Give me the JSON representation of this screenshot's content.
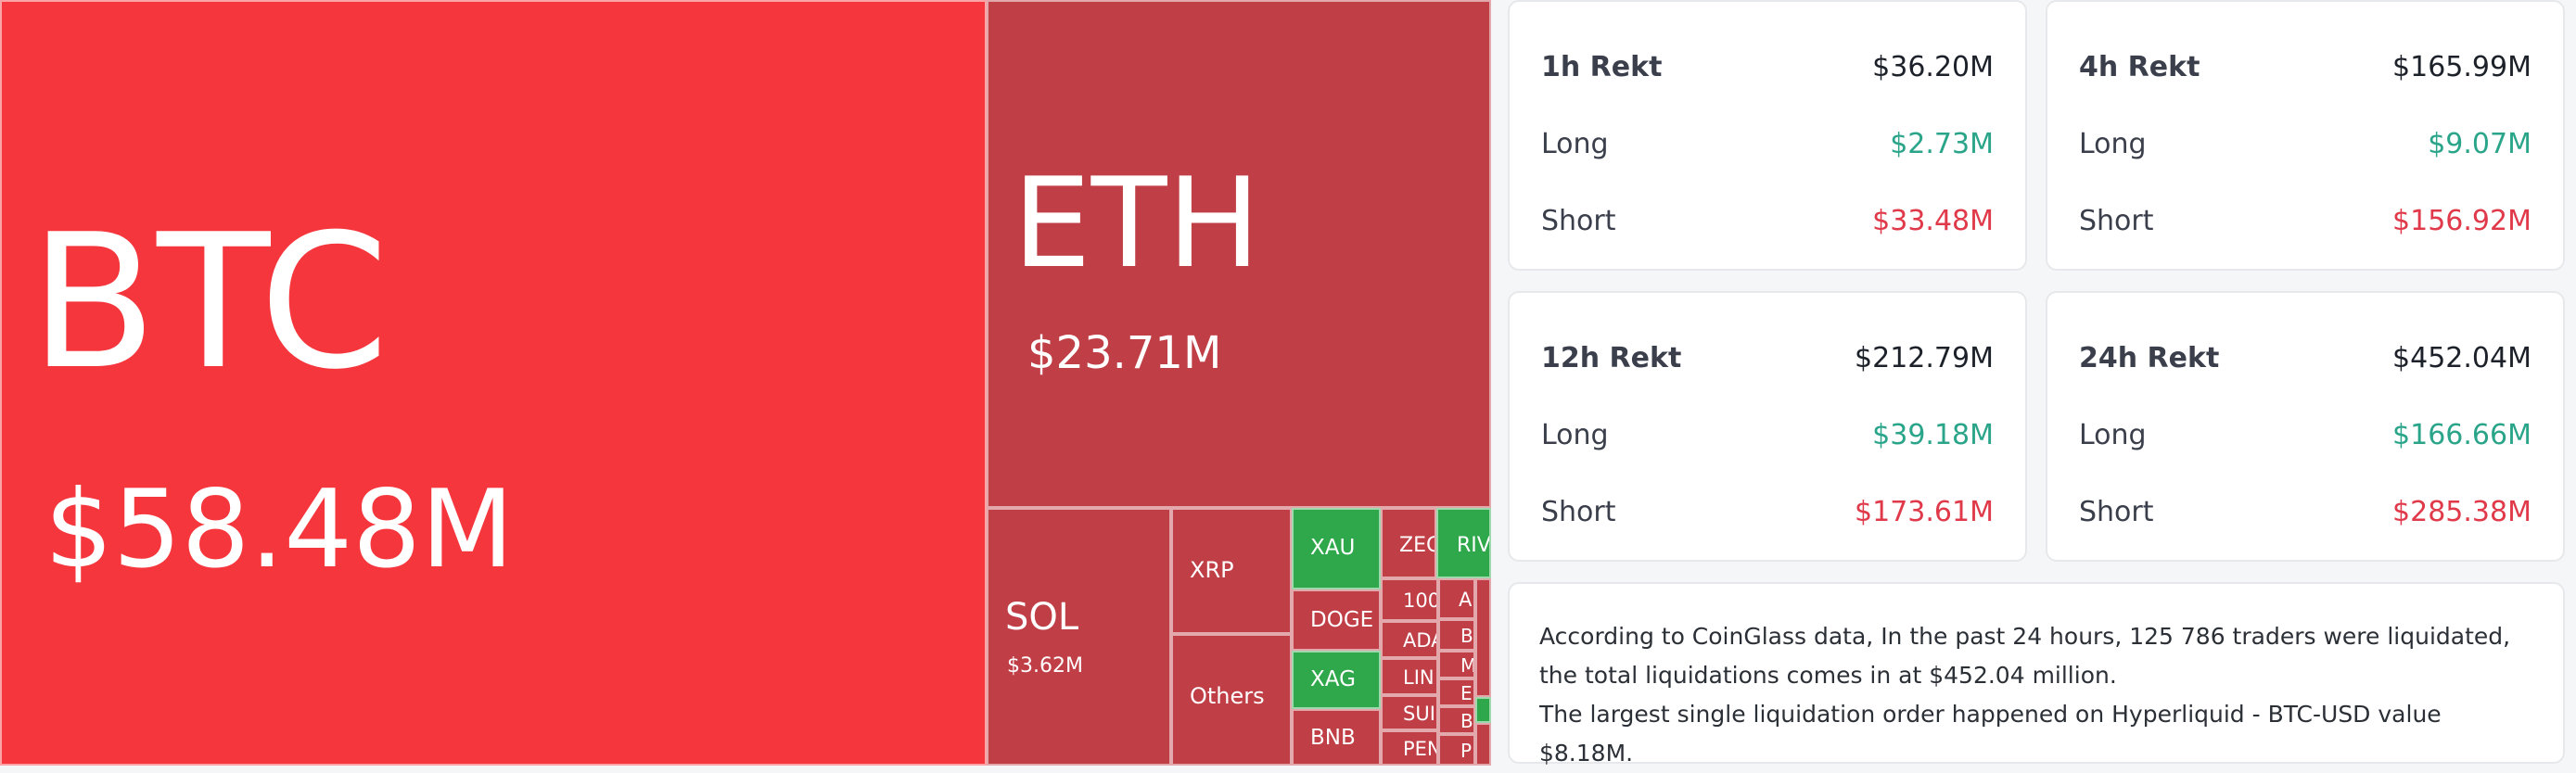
{
  "treemap": {
    "btc": {
      "symbol": "BTC",
      "value": "$58.48M"
    },
    "eth": {
      "symbol": "ETH",
      "value": "$23.71M"
    },
    "sol": {
      "symbol": "SOL",
      "value": "$3.62M"
    },
    "xrp": {
      "symbol": "XRP"
    },
    "others": {
      "symbol": "Others"
    },
    "xau": {
      "symbol": "XAU"
    },
    "doge": {
      "symbol": "DOGE"
    },
    "xag": {
      "symbol": "XAG"
    },
    "bnb": {
      "symbol": "BNB"
    },
    "zec": {
      "symbol": "ZEC"
    },
    "riv": {
      "symbol": "RIV"
    },
    "t100": {
      "symbol": "100"
    },
    "ada": {
      "symbol": "ADA"
    },
    "link": {
      "symbol": "LIN"
    },
    "sui": {
      "symbol": "SUI"
    },
    "pen": {
      "symbol": "PEN"
    },
    "s_a": {
      "symbol": "A"
    },
    "s_b1": {
      "symbol": "B"
    },
    "s_m": {
      "symbol": "M"
    },
    "s_e": {
      "symbol": "E"
    },
    "s_b2": {
      "symbol": "B"
    },
    "s_p": {
      "symbol": "P"
    }
  },
  "rekt": {
    "h1": {
      "title": "1h Rekt",
      "total": "$36.20M",
      "long_label": "Long",
      "long": "$2.73M",
      "short_label": "Short",
      "short": "$33.48M"
    },
    "h4": {
      "title": "4h Rekt",
      "total": "$165.99M",
      "long_label": "Long",
      "long": "$9.07M",
      "short_label": "Short",
      "short": "$156.92M"
    },
    "h12": {
      "title": "12h Rekt",
      "total": "$212.79M",
      "long_label": "Long",
      "long": "$39.18M",
      "short_label": "Short",
      "short": "$173.61M"
    },
    "h24": {
      "title": "24h Rekt",
      "total": "$452.04M",
      "long_label": "Long",
      "long": "$166.66M",
      "short_label": "Short",
      "short": "$285.38M"
    }
  },
  "summary": {
    "line1": "According to CoinGlass data, In the past 24 hours, 125 786 traders were liquidated, the total liquidations comes in at $452.04 million.",
    "line2": "The largest single liquidation order happened on Hyperliquid - BTC-USD value $8.18M."
  }
}
